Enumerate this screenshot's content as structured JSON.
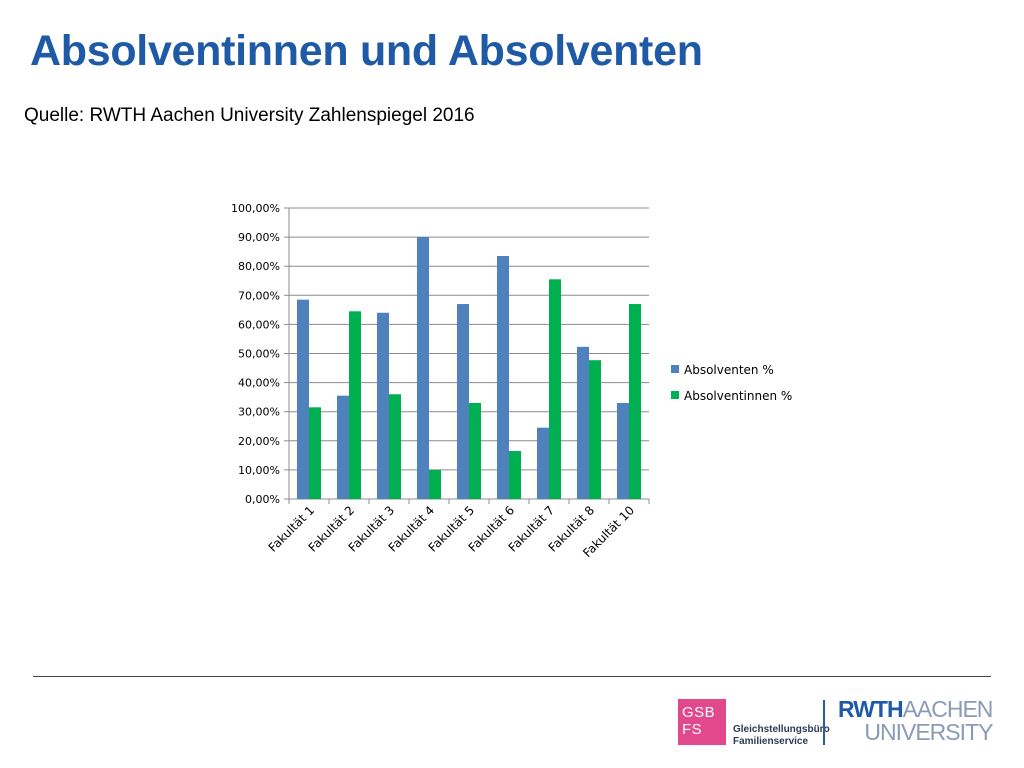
{
  "header": {
    "title": "Absolventinnen und Absolventen",
    "source": "Quelle: RWTH Aachen University Zahlenspiegel 2016"
  },
  "footer": {
    "gsb_logo": {
      "line1": "GSB",
      "line2": "FS",
      "color": "#e2488c"
    },
    "office_line1": "Gleichstellungsbüro",
    "office_line2": "Familienservice",
    "university_logo": {
      "part1": "RWTH",
      "part2": "AACHEN",
      "part3": "UNIVERSITY"
    }
  },
  "chart_data": {
    "type": "bar",
    "title": "",
    "xlabel": "",
    "ylabel": "",
    "ylim": [
      0,
      100
    ],
    "y_ticks": [
      0,
      10,
      20,
      30,
      40,
      50,
      60,
      70,
      80,
      90,
      100
    ],
    "y_tick_labels": [
      "0,00%",
      "10,00%",
      "20,00%",
      "30,00%",
      "40,00%",
      "50,00%",
      "60,00%",
      "70,00%",
      "80,00%",
      "90,00%",
      "100,00%"
    ],
    "grid": true,
    "legend_position": "right",
    "categories": [
      "Fakultät 1",
      "Fakultät 2",
      "Fakultät 3",
      "Fakultät 4",
      "Fakultät 5",
      "Fakultät 6",
      "Fakultät 7",
      "Fakultät 8",
      "Fakultät 10"
    ],
    "series": [
      {
        "name": "Absolventen %",
        "color": "#4f81bd",
        "values": [
          68.5,
          35.5,
          64,
          90,
          67,
          83.5,
          24.5,
          52.3,
          33
        ]
      },
      {
        "name": "Absolventinnen %",
        "color": "#00b050",
        "values": [
          31.5,
          64.5,
          36,
          10,
          33,
          16.5,
          75.5,
          47.7,
          67
        ]
      }
    ]
  }
}
